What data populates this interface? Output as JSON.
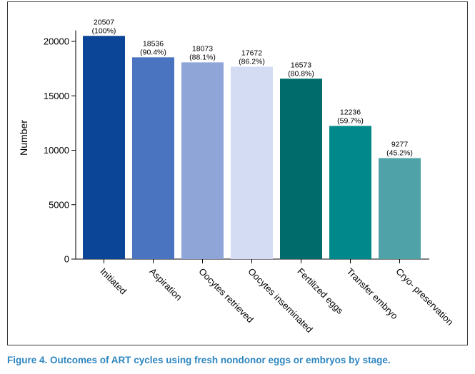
{
  "chart_data": {
    "type": "bar",
    "title": "",
    "xlabel": "",
    "ylabel": "Number",
    "ylim": [
      0,
      22000
    ],
    "yticks": [
      0,
      5000,
      10000,
      15000,
      20000
    ],
    "grid": false,
    "categories": [
      "Initiated",
      "Aspiration",
      "Oocytes retrieved",
      "Oocytes inseminated",
      "Fertilized eggs",
      "Transfer embryo",
      "Cryo- preservation"
    ],
    "values": [
      20507,
      18536,
      18073,
      17672,
      16573,
      12236,
      9277
    ],
    "percent_labels": [
      "(100%)",
      "(90.4%)",
      "(88.1%)",
      "(86.2%)",
      "(80.8%)",
      "(59.7%)",
      "(45.2%)"
    ],
    "colors": [
      "#0a4597",
      "#4a74bf",
      "#8fa5d8",
      "#d3dcf3",
      "#006b6b",
      "#00888a",
      "#4fa3a8"
    ]
  },
  "caption": "Figure 4. Outcomes of ART cycles using fresh nondonor eggs or embryos by stage."
}
